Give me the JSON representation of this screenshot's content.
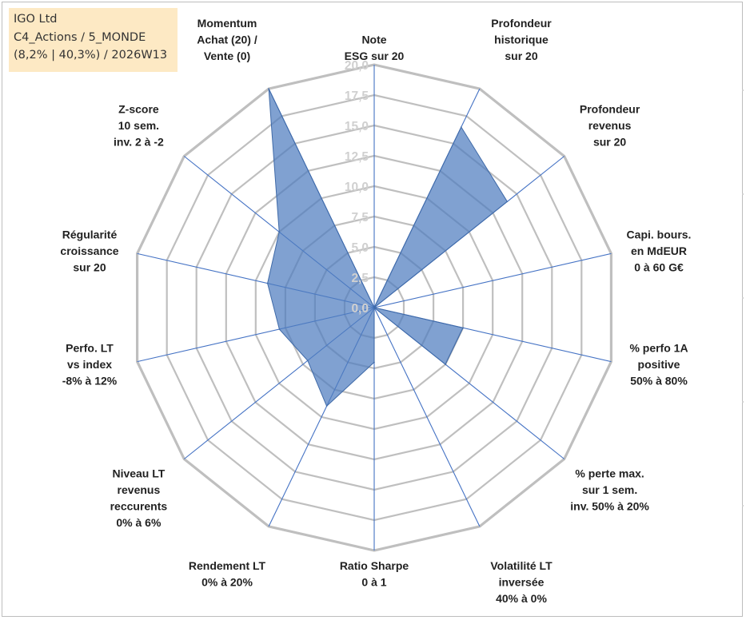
{
  "info": {
    "company": "IGO Ltd",
    "category": "C4_Actions / 5_MONDE",
    "perf": "(8,2% | 40,3%) / 2026W13"
  },
  "colors": {
    "grid": "#bfbfbf",
    "spoke": "#4472c4",
    "fill": "#4f7dbf",
    "stroke": "#3f6aa8",
    "infoBg": "#fde9c4"
  },
  "chart_data": {
    "type": "radar",
    "title": "",
    "rmin": 0,
    "rmax": 20,
    "ticks": [
      "0,0",
      "2,5",
      "5,0",
      "7,5",
      "10,0",
      "12,5",
      "15,0",
      "17,5",
      "20,0"
    ],
    "axes": [
      {
        "lines": [
          "Note",
          "ESG sur 20"
        ]
      },
      {
        "lines": [
          "Profondeur",
          "historique",
          "sur 20"
        ]
      },
      {
        "lines": [
          "Profondeur",
          "revenus",
          "sur 20"
        ]
      },
      {
        "lines": [
          "Capi. bours.",
          "en MdEUR",
          "0 à 60 G€"
        ]
      },
      {
        "lines": [
          "% perfo 1A",
          "positive",
          "50% à 80%"
        ]
      },
      {
        "lines": [
          "% perte max.",
          "sur 1 sem.",
          "inv. 50% à 20%"
        ]
      },
      {
        "lines": [
          "Volatilité LT",
          "inversée",
          "40% à 0%"
        ]
      },
      {
        "lines": [
          "Ratio Sharpe",
          "0 à 1"
        ]
      },
      {
        "lines": [
          "Rendement LT",
          "0% à 20%"
        ]
      },
      {
        "lines": [
          "Niveau LT",
          "revenus",
          "reccurents",
          "0% à 6%"
        ]
      },
      {
        "lines": [
          "Perfo. LT",
          "vs index",
          "-8% à 12%"
        ]
      },
      {
        "lines": [
          "Régularité",
          "croissance",
          "sur 20"
        ]
      },
      {
        "lines": [
          "Z-score",
          "10 sem.",
          "inv. 2 à -2"
        ]
      },
      {
        "lines": [
          "Momentum",
          "Achat (20) /",
          "Vente (0)"
        ]
      }
    ],
    "series": [
      {
        "name": "IGO Ltd",
        "values": [
          0.0,
          16.5,
          14.0,
          0.0,
          7.5,
          7.5,
          0.0,
          4.5,
          9.0,
          7.0,
          8.0,
          9.0,
          10.0,
          20.0
        ]
      }
    ]
  }
}
